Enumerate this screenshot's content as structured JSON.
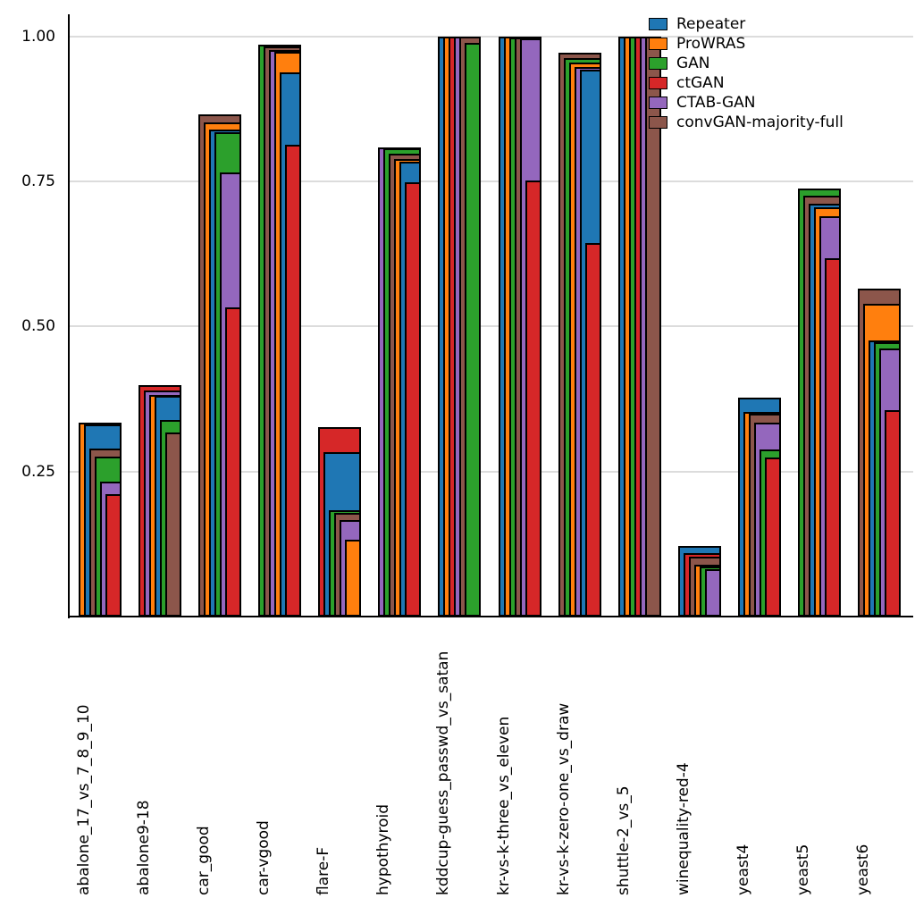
{
  "figure": {
    "background": "#ffffff",
    "axis_color": "#000000",
    "gridline_color": "#dcdcdc",
    "bar_edge_color": "#000000"
  },
  "chart_data": {
    "type": "bar",
    "variant": "overlapping-nested-bars",
    "title": "",
    "xlabel": "",
    "ylabel": "",
    "ylim": [
      0,
      1.035
    ],
    "grid": true,
    "legend_position": "top-right",
    "yticks": [
      {
        "value": 0.25,
        "label": "0.25"
      },
      {
        "value": 0.5,
        "label": "0.50"
      },
      {
        "value": 0.75,
        "label": "0.75"
      },
      {
        "value": 1.0,
        "label": "1.00"
      }
    ],
    "categories": [
      "abalone_17_vs_7_8_9_10",
      "abalone9-18",
      "car_good",
      "car-vgood",
      "flare-F",
      "hypothyroid",
      "kddcup-guess_passwd_vs_satan",
      "kr-vs-k-three_vs_eleven",
      "kr-vs-k-zero-one_vs_draw",
      "shuttle-2_vs_5",
      "winequality-red-4",
      "yeast4",
      "yeast5",
      "yeast6"
    ],
    "series": [
      {
        "name": "Repeater",
        "color": "#1f77b4",
        "values": [
          0.331,
          0.38,
          0.839,
          0.938,
          0.284,
          0.783,
          1.0,
          1.0,
          0.943,
          1.0,
          0.122,
          0.377,
          0.712,
          0.476
        ]
      },
      {
        "name": "ProWRAS",
        "color": "#ff7f0e",
        "values": [
          0.334,
          0.382,
          0.852,
          0.973,
          0.132,
          0.789,
          1.0,
          0.999,
          0.954,
          1.0,
          0.089,
          0.353,
          0.706,
          0.539
        ]
      },
      {
        "name": "GAN",
        "color": "#2ca02c",
        "values": [
          0.276,
          0.339,
          0.834,
          0.985,
          0.183,
          0.807,
          0.988,
          0.998,
          0.962,
          1.0,
          0.086,
          0.288,
          0.738,
          0.472
        ]
      },
      {
        "name": "ctGAN",
        "color": "#d62728",
        "values": [
          0.211,
          0.399,
          0.533,
          0.813,
          0.326,
          0.748,
          1.0,
          0.752,
          0.644,
          1.0,
          0.109,
          0.274,
          0.618,
          0.356
        ]
      },
      {
        "name": "CTAB-GAN",
        "color": "#9467bd",
        "values": [
          0.233,
          0.39,
          0.765,
          0.976,
          0.166,
          0.809,
          1.0,
          0.996,
          0.947,
          1.0,
          0.082,
          0.334,
          0.69,
          0.462
        ]
      },
      {
        "name": "convGAN-majority-full",
        "color": "#8c564b",
        "values": [
          0.29,
          0.318,
          0.865,
          0.983,
          0.178,
          0.798,
          1.0,
          0.997,
          0.972,
          1.0,
          0.104,
          0.35,
          0.725,
          0.565
        ]
      }
    ]
  }
}
